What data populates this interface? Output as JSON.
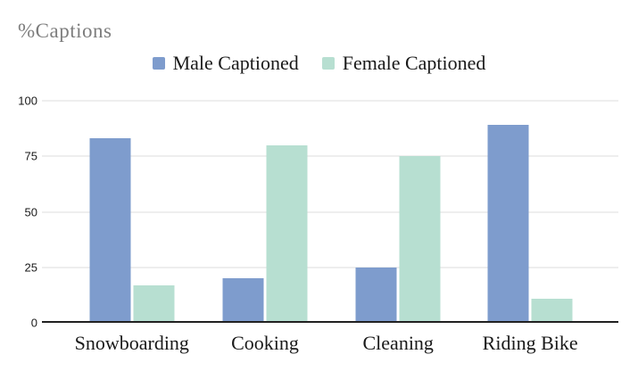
{
  "title": "%Captions",
  "colors": {
    "male_series": "#7e9ccd",
    "female_series": "#b7dfd1",
    "title_text": "#7d7d7d",
    "gridline": "#dcdcdc",
    "axis_line": "#212121",
    "label_text": "#1a1a1a",
    "background": "#ffffff"
  },
  "chart_data": {
    "type": "bar",
    "title": "%Captions",
    "categories": [
      "Snowboarding",
      "Cooking",
      "Cleaning",
      "Riding Bike"
    ],
    "series": [
      {
        "name": "Male Captioned",
        "color": "#7e9ccd",
        "values": [
          83,
          20,
          25,
          89
        ]
      },
      {
        "name": "Female Captioned",
        "color": "#b7dfd1",
        "values": [
          17,
          80,
          75,
          11
        ]
      }
    ],
    "xlabel": "",
    "ylabel": "",
    "ylim": [
      0,
      100
    ],
    "yticks": [
      0,
      25,
      50,
      75,
      100
    ],
    "grid": true,
    "legend_position": "top",
    "group_center_percents": [
      15.6,
      38.7,
      61.8,
      84.7
    ]
  }
}
